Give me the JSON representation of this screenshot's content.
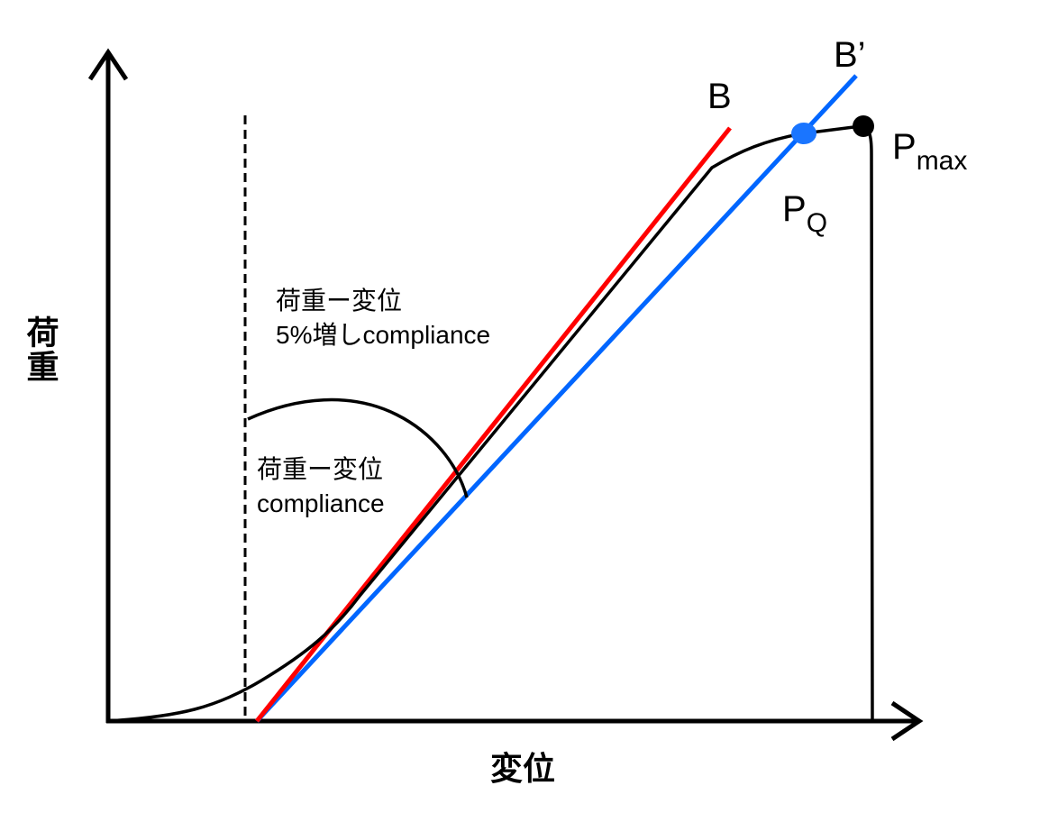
{
  "axes": {
    "y_label": "荷重",
    "x_label": "変位"
  },
  "lines": {
    "B": {
      "label": "B",
      "color": "#ff0000"
    },
    "B_prime": {
      "label": "B’",
      "color": "#0066ff"
    }
  },
  "points": {
    "pq": {
      "label_main": "P",
      "label_sub": "Q",
      "color": "#1a75ff"
    },
    "pmax": {
      "label_main": "P",
      "label_sub": "max",
      "color": "#000000"
    }
  },
  "annotations": {
    "offset_compliance_line1": "荷重ー変位",
    "offset_compliance_line2": "5%増しcompliance",
    "compliance_line1": "荷重ー変位",
    "compliance_line2": "compliance"
  }
}
